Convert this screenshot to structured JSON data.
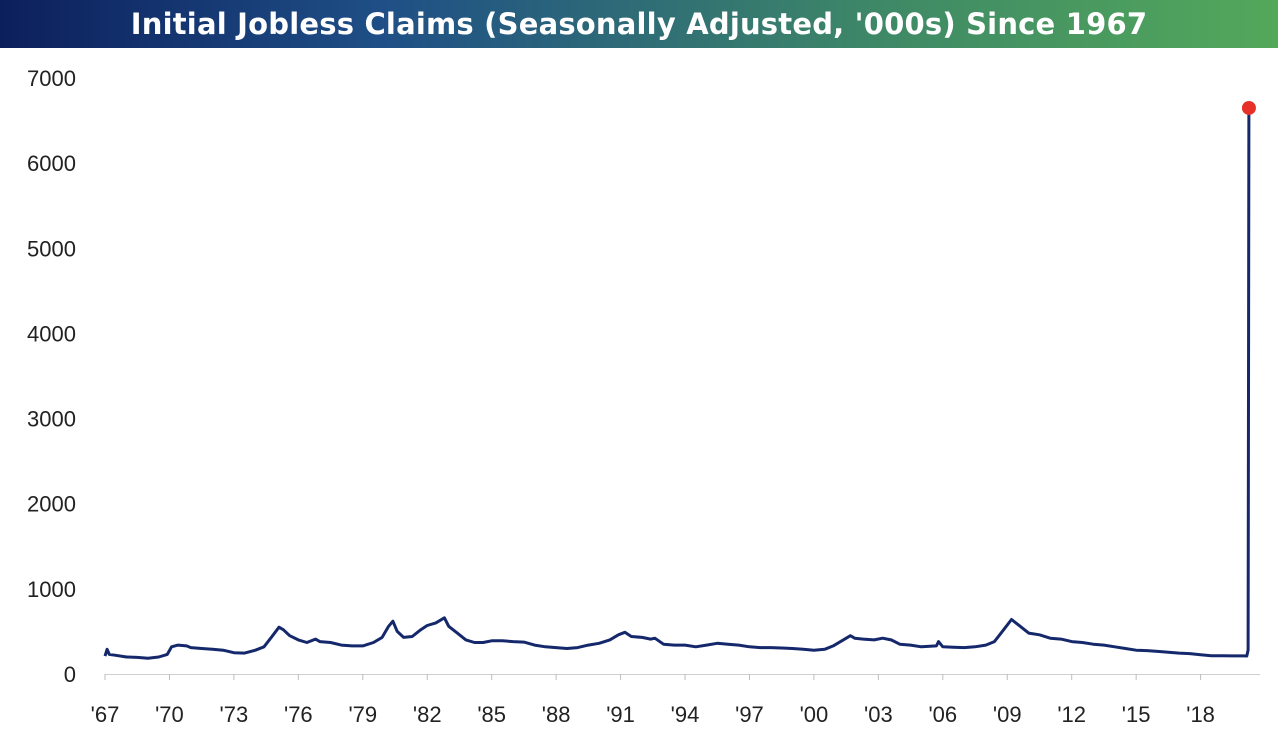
{
  "chart_data": {
    "type": "line",
    "title": "Initial Jobless Claims (Seasonally Adjusted, '000s) Since 1967",
    "xlabel": "",
    "ylabel": "",
    "xlim": [
      1967,
      2020.3
    ],
    "ylim": [
      0,
      7000
    ],
    "yticks": [
      0,
      1000,
      2000,
      3000,
      4000,
      5000,
      6000,
      7000
    ],
    "xticks": [
      {
        "year": 1967,
        "label": "'67"
      },
      {
        "year": 1970,
        "label": "'70"
      },
      {
        "year": 1973,
        "label": "'73"
      },
      {
        "year": 1976,
        "label": "'76"
      },
      {
        "year": 1979,
        "label": "'79"
      },
      {
        "year": 1982,
        "label": "'82"
      },
      {
        "year": 1985,
        "label": "'85"
      },
      {
        "year": 1988,
        "label": "'88"
      },
      {
        "year": 1991,
        "label": "'91"
      },
      {
        "year": 1994,
        "label": "'94"
      },
      {
        "year": 1997,
        "label": "'97"
      },
      {
        "year": 2000,
        "label": "'00"
      },
      {
        "year": 2003,
        "label": "'03"
      },
      {
        "year": 2006,
        "label": "'06"
      },
      {
        "year": 2009,
        "label": "'09"
      },
      {
        "year": 2012,
        "label": "'12"
      },
      {
        "year": 2015,
        "label": "'15"
      },
      {
        "year": 2018,
        "label": "'18"
      }
    ],
    "grid": false,
    "series": [
      {
        "color": "#14286b",
        "points": [
          [
            1967.0,
            210
          ],
          [
            1967.1,
            290
          ],
          [
            1967.2,
            230
          ],
          [
            1967.5,
            220
          ],
          [
            1968.0,
            200
          ],
          [
            1968.5,
            195
          ],
          [
            1969.0,
            185
          ],
          [
            1969.5,
            200
          ],
          [
            1969.9,
            230
          ],
          [
            1970.1,
            320
          ],
          [
            1970.4,
            340
          ],
          [
            1970.8,
            330
          ],
          [
            1971.0,
            310
          ],
          [
            1971.5,
            300
          ],
          [
            1972.0,
            290
          ],
          [
            1972.5,
            280
          ],
          [
            1973.0,
            250
          ],
          [
            1973.5,
            245
          ],
          [
            1974.0,
            280
          ],
          [
            1974.4,
            320
          ],
          [
            1974.8,
            450
          ],
          [
            1975.1,
            550
          ],
          [
            1975.3,
            520
          ],
          [
            1975.6,
            450
          ],
          [
            1976.0,
            400
          ],
          [
            1976.4,
            370
          ],
          [
            1976.8,
            410
          ],
          [
            1977.0,
            380
          ],
          [
            1977.5,
            370
          ],
          [
            1978.0,
            340
          ],
          [
            1978.5,
            330
          ],
          [
            1979.0,
            330
          ],
          [
            1979.5,
            370
          ],
          [
            1979.9,
            430
          ],
          [
            1980.2,
            560
          ],
          [
            1980.4,
            620
          ],
          [
            1980.6,
            500
          ],
          [
            1980.9,
            430
          ],
          [
            1981.3,
            440
          ],
          [
            1981.7,
            520
          ],
          [
            1982.0,
            570
          ],
          [
            1982.4,
            600
          ],
          [
            1982.8,
            660
          ],
          [
            1983.0,
            560
          ],
          [
            1983.4,
            480
          ],
          [
            1983.8,
            400
          ],
          [
            1984.2,
            370
          ],
          [
            1984.6,
            370
          ],
          [
            1985.0,
            390
          ],
          [
            1985.5,
            390
          ],
          [
            1986.0,
            380
          ],
          [
            1986.5,
            375
          ],
          [
            1987.0,
            340
          ],
          [
            1987.5,
            320
          ],
          [
            1988.0,
            310
          ],
          [
            1988.5,
            300
          ],
          [
            1989.0,
            310
          ],
          [
            1989.5,
            340
          ],
          [
            1990.0,
            360
          ],
          [
            1990.5,
            400
          ],
          [
            1990.9,
            460
          ],
          [
            1991.2,
            490
          ],
          [
            1991.5,
            440
          ],
          [
            1992.0,
            430
          ],
          [
            1992.4,
            410
          ],
          [
            1992.6,
            420
          ],
          [
            1993.0,
            350
          ],
          [
            1993.5,
            340
          ],
          [
            1994.0,
            340
          ],
          [
            1994.5,
            320
          ],
          [
            1995.0,
            340
          ],
          [
            1995.5,
            360
          ],
          [
            1996.0,
            350
          ],
          [
            1996.5,
            340
          ],
          [
            1997.0,
            320
          ],
          [
            1997.5,
            310
          ],
          [
            1998.0,
            310
          ],
          [
            1998.5,
            305
          ],
          [
            1999.0,
            300
          ],
          [
            1999.5,
            290
          ],
          [
            2000.0,
            280
          ],
          [
            2000.5,
            290
          ],
          [
            2000.9,
            330
          ],
          [
            2001.3,
            390
          ],
          [
            2001.7,
            450
          ],
          [
            2001.9,
            420
          ],
          [
            2002.3,
            410
          ],
          [
            2002.8,
            400
          ],
          [
            2003.2,
            420
          ],
          [
            2003.6,
            400
          ],
          [
            2004.0,
            350
          ],
          [
            2004.5,
            340
          ],
          [
            2005.0,
            320
          ],
          [
            2005.7,
            330
          ],
          [
            2005.8,
            380
          ],
          [
            2006.0,
            320
          ],
          [
            2006.5,
            315
          ],
          [
            2007.0,
            310
          ],
          [
            2007.5,
            320
          ],
          [
            2008.0,
            340
          ],
          [
            2008.4,
            380
          ],
          [
            2008.8,
            510
          ],
          [
            2009.2,
            640
          ],
          [
            2009.5,
            580
          ],
          [
            2010.0,
            480
          ],
          [
            2010.5,
            460
          ],
          [
            2011.0,
            420
          ],
          [
            2011.5,
            410
          ],
          [
            2012.0,
            380
          ],
          [
            2012.5,
            370
          ],
          [
            2013.0,
            350
          ],
          [
            2013.5,
            340
          ],
          [
            2014.0,
            320
          ],
          [
            2014.5,
            300
          ],
          [
            2015.0,
            280
          ],
          [
            2015.5,
            275
          ],
          [
            2016.0,
            265
          ],
          [
            2016.5,
            255
          ],
          [
            2017.0,
            245
          ],
          [
            2017.5,
            240
          ],
          [
            2018.0,
            225
          ],
          [
            2018.5,
            215
          ],
          [
            2019.0,
            215
          ],
          [
            2019.5,
            212
          ],
          [
            2020.0,
            212
          ],
          [
            2020.15,
            211
          ],
          [
            2020.21,
            282
          ],
          [
            2020.23,
            3307
          ],
          [
            2020.25,
            6648
          ]
        ],
        "highlight": {
          "x": 2020.25,
          "y": 6648,
          "color": "#e8302a"
        }
      }
    ]
  }
}
